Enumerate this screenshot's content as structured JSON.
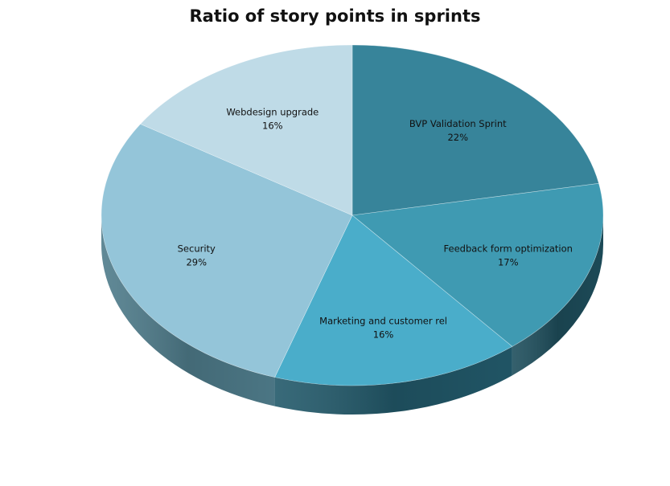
{
  "chart_data": {
    "type": "pie",
    "title": "Ratio of story points in sprints",
    "style": "3d",
    "slices": [
      {
        "label": "BVP Validation  Sprint",
        "value": 22,
        "value_label": "22%",
        "color": "#37849a"
      },
      {
        "label": "Feedback form optimization",
        "value": 17,
        "value_label": "17%",
        "color": "#3f9ab2"
      },
      {
        "label": "Marketing and customer rel",
        "value": 16,
        "value_label": "16%",
        "color": "#4aadca"
      },
      {
        "label": "Security",
        "value": 29,
        "value_label": "29%",
        "color": "#94c5d9"
      },
      {
        "label": "Webdesign upgrade",
        "value": 16,
        "value_label": "16%",
        "color": "#bfdbe7"
      }
    ],
    "side_colors": [
      "#1f4f5d",
      "#1e4e5c",
      "#22596a",
      "#4f7c8b",
      "#6d96a4"
    ]
  }
}
